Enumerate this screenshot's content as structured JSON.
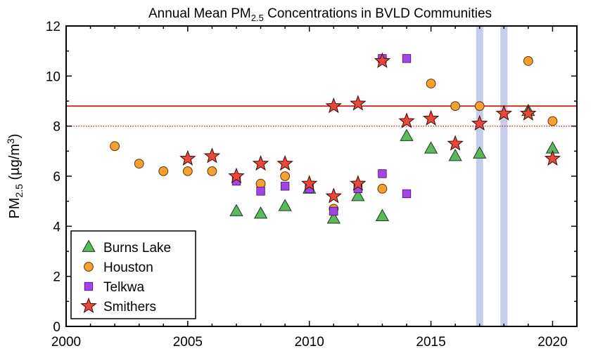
{
  "chart_data": {
    "type": "scatter",
    "title": {
      "pre": "Annual Mean PM",
      "sub": "2.5",
      "post": " Concentrations in BVLD Communities"
    },
    "ylabel": {
      "pre": "PM",
      "sub": "2.5",
      "mid": " (µg/m",
      "sup": "3",
      "post": ")"
    },
    "xlabel": "",
    "xlim": [
      2000,
      2021
    ],
    "ylim": [
      0,
      12
    ],
    "x_ticks": [
      "2000",
      "2005",
      "2010",
      "2015",
      "2020"
    ],
    "y_ticks": [
      "0",
      "2",
      "4",
      "6",
      "8",
      "10",
      "12"
    ],
    "reference_lines": [
      {
        "y": 8.8,
        "style": "solid",
        "color": "#c8372d"
      },
      {
        "y": 8.0,
        "style": "dotted",
        "color": "#c8372d"
      }
    ],
    "highlight_bands": [
      {
        "x": 2017,
        "color": "#c5cdea"
      },
      {
        "x": 2018,
        "color": "#c5cdea"
      }
    ],
    "legend_position": "bottom-left",
    "series": [
      {
        "name": "Burns Lake",
        "marker": "triangle",
        "color": "#5cb85c",
        "points": [
          [
            2007,
            4.6
          ],
          [
            2008,
            4.5
          ],
          [
            2009,
            4.8
          ],
          [
            2010,
            5.5
          ],
          [
            2011,
            4.3
          ],
          [
            2012,
            5.2
          ],
          [
            2013,
            4.4
          ],
          [
            2014,
            7.6
          ],
          [
            2015,
            7.1
          ],
          [
            2016,
            6.8
          ],
          [
            2017,
            6.9
          ],
          [
            2019,
            8.6
          ],
          [
            2020,
            7.1
          ]
        ]
      },
      {
        "name": "Houston",
        "marker": "circle",
        "color": "#f5a030",
        "points": [
          [
            2002,
            7.2
          ],
          [
            2003,
            6.5
          ],
          [
            2004,
            6.2
          ],
          [
            2005,
            6.2
          ],
          [
            2006,
            6.2
          ],
          [
            2008,
            5.7
          ],
          [
            2009,
            6.0
          ],
          [
            2011,
            4.7
          ],
          [
            2013,
            5.5
          ],
          [
            2015,
            9.7
          ],
          [
            2016,
            8.8
          ],
          [
            2017,
            8.8
          ],
          [
            2019,
            10.6
          ],
          [
            2020,
            8.2
          ]
        ]
      },
      {
        "name": "Telkwa",
        "marker": "square",
        "color": "#a245e6",
        "points": [
          [
            2007,
            5.8
          ],
          [
            2008,
            5.4
          ],
          [
            2009,
            5.6
          ],
          [
            2010,
            5.5
          ],
          [
            2011,
            4.6
          ],
          [
            2012,
            5.5
          ],
          [
            2013,
            6.1
          ],
          [
            2013,
            10.7
          ],
          [
            2014,
            5.3
          ],
          [
            2014,
            10.7
          ]
        ]
      },
      {
        "name": "Smithers",
        "marker": "star",
        "color": "#e8473a",
        "points": [
          [
            2005,
            6.7
          ],
          [
            2006,
            6.8
          ],
          [
            2007,
            6.0
          ],
          [
            2008,
            6.5
          ],
          [
            2009,
            6.5
          ],
          [
            2010,
            5.7
          ],
          [
            2011,
            5.2
          ],
          [
            2011,
            8.8
          ],
          [
            2012,
            5.7
          ],
          [
            2012,
            8.9
          ],
          [
            2013,
            10.6
          ],
          [
            2014,
            8.2
          ],
          [
            2015,
            8.3
          ],
          [
            2016,
            7.3
          ],
          [
            2017,
            8.1
          ],
          [
            2018,
            8.5
          ],
          [
            2019,
            8.5
          ],
          [
            2020,
            6.7
          ]
        ]
      }
    ]
  }
}
